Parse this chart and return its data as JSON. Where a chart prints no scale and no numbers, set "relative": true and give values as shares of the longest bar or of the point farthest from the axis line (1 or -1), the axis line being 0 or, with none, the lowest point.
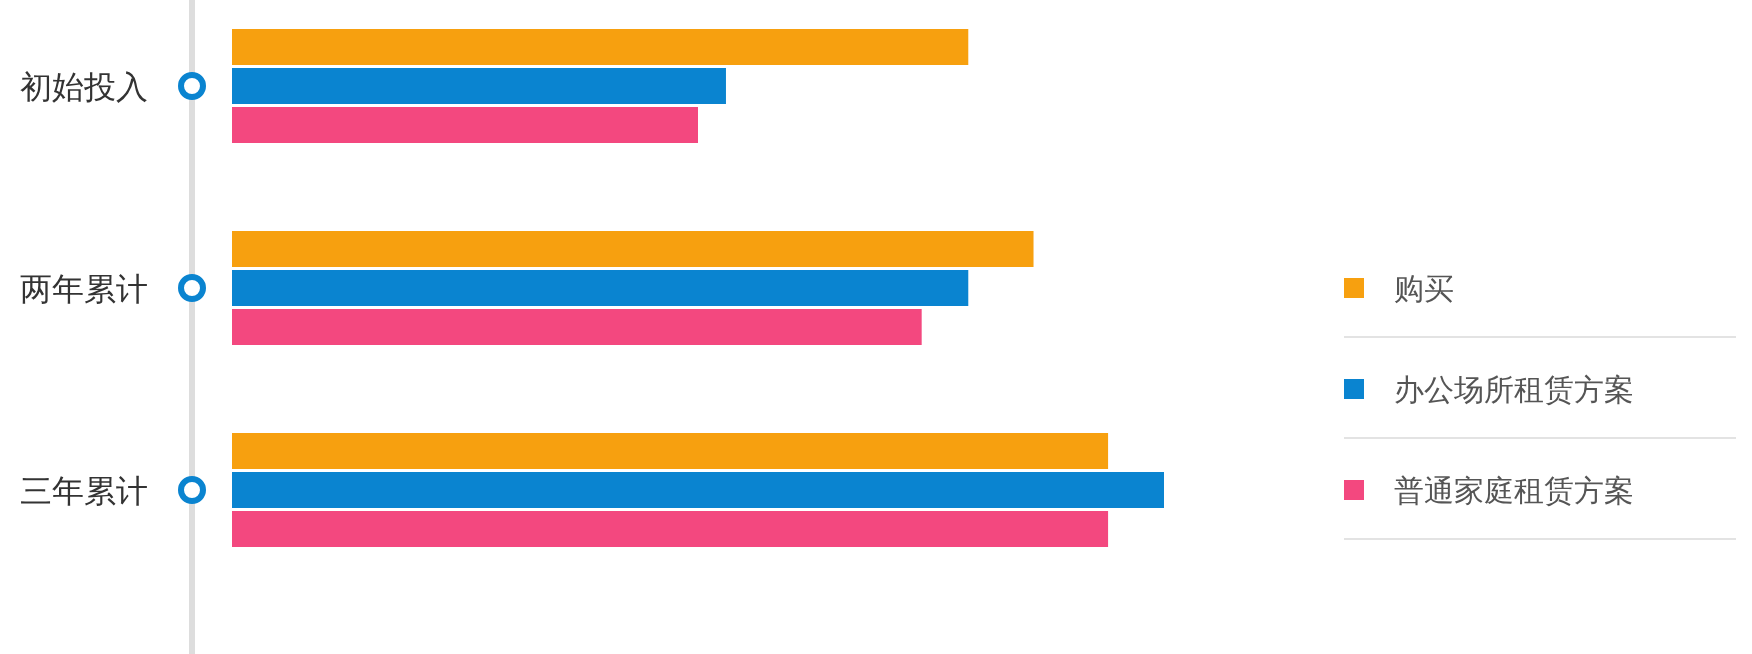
{
  "chart_data": {
    "type": "bar",
    "orientation": "horizontal",
    "relative": true,
    "legend": "right",
    "categories": [
      "初始投入",
      "两年累计",
      "三年累计"
    ],
    "series": [
      {
        "name": "购买",
        "color": "#f7a00f",
        "values": [
          0.79,
          0.86,
          0.94
        ]
      },
      {
        "name": "办公场所租赁方案",
        "color": "#0a84d0",
        "values": [
          0.53,
          0.79,
          1
        ]
      },
      {
        "name": "普通家庭租赁方案",
        "color": "#f3487f",
        "values": [
          0.5,
          0.74,
          0.94
        ]
      }
    ]
  }
}
